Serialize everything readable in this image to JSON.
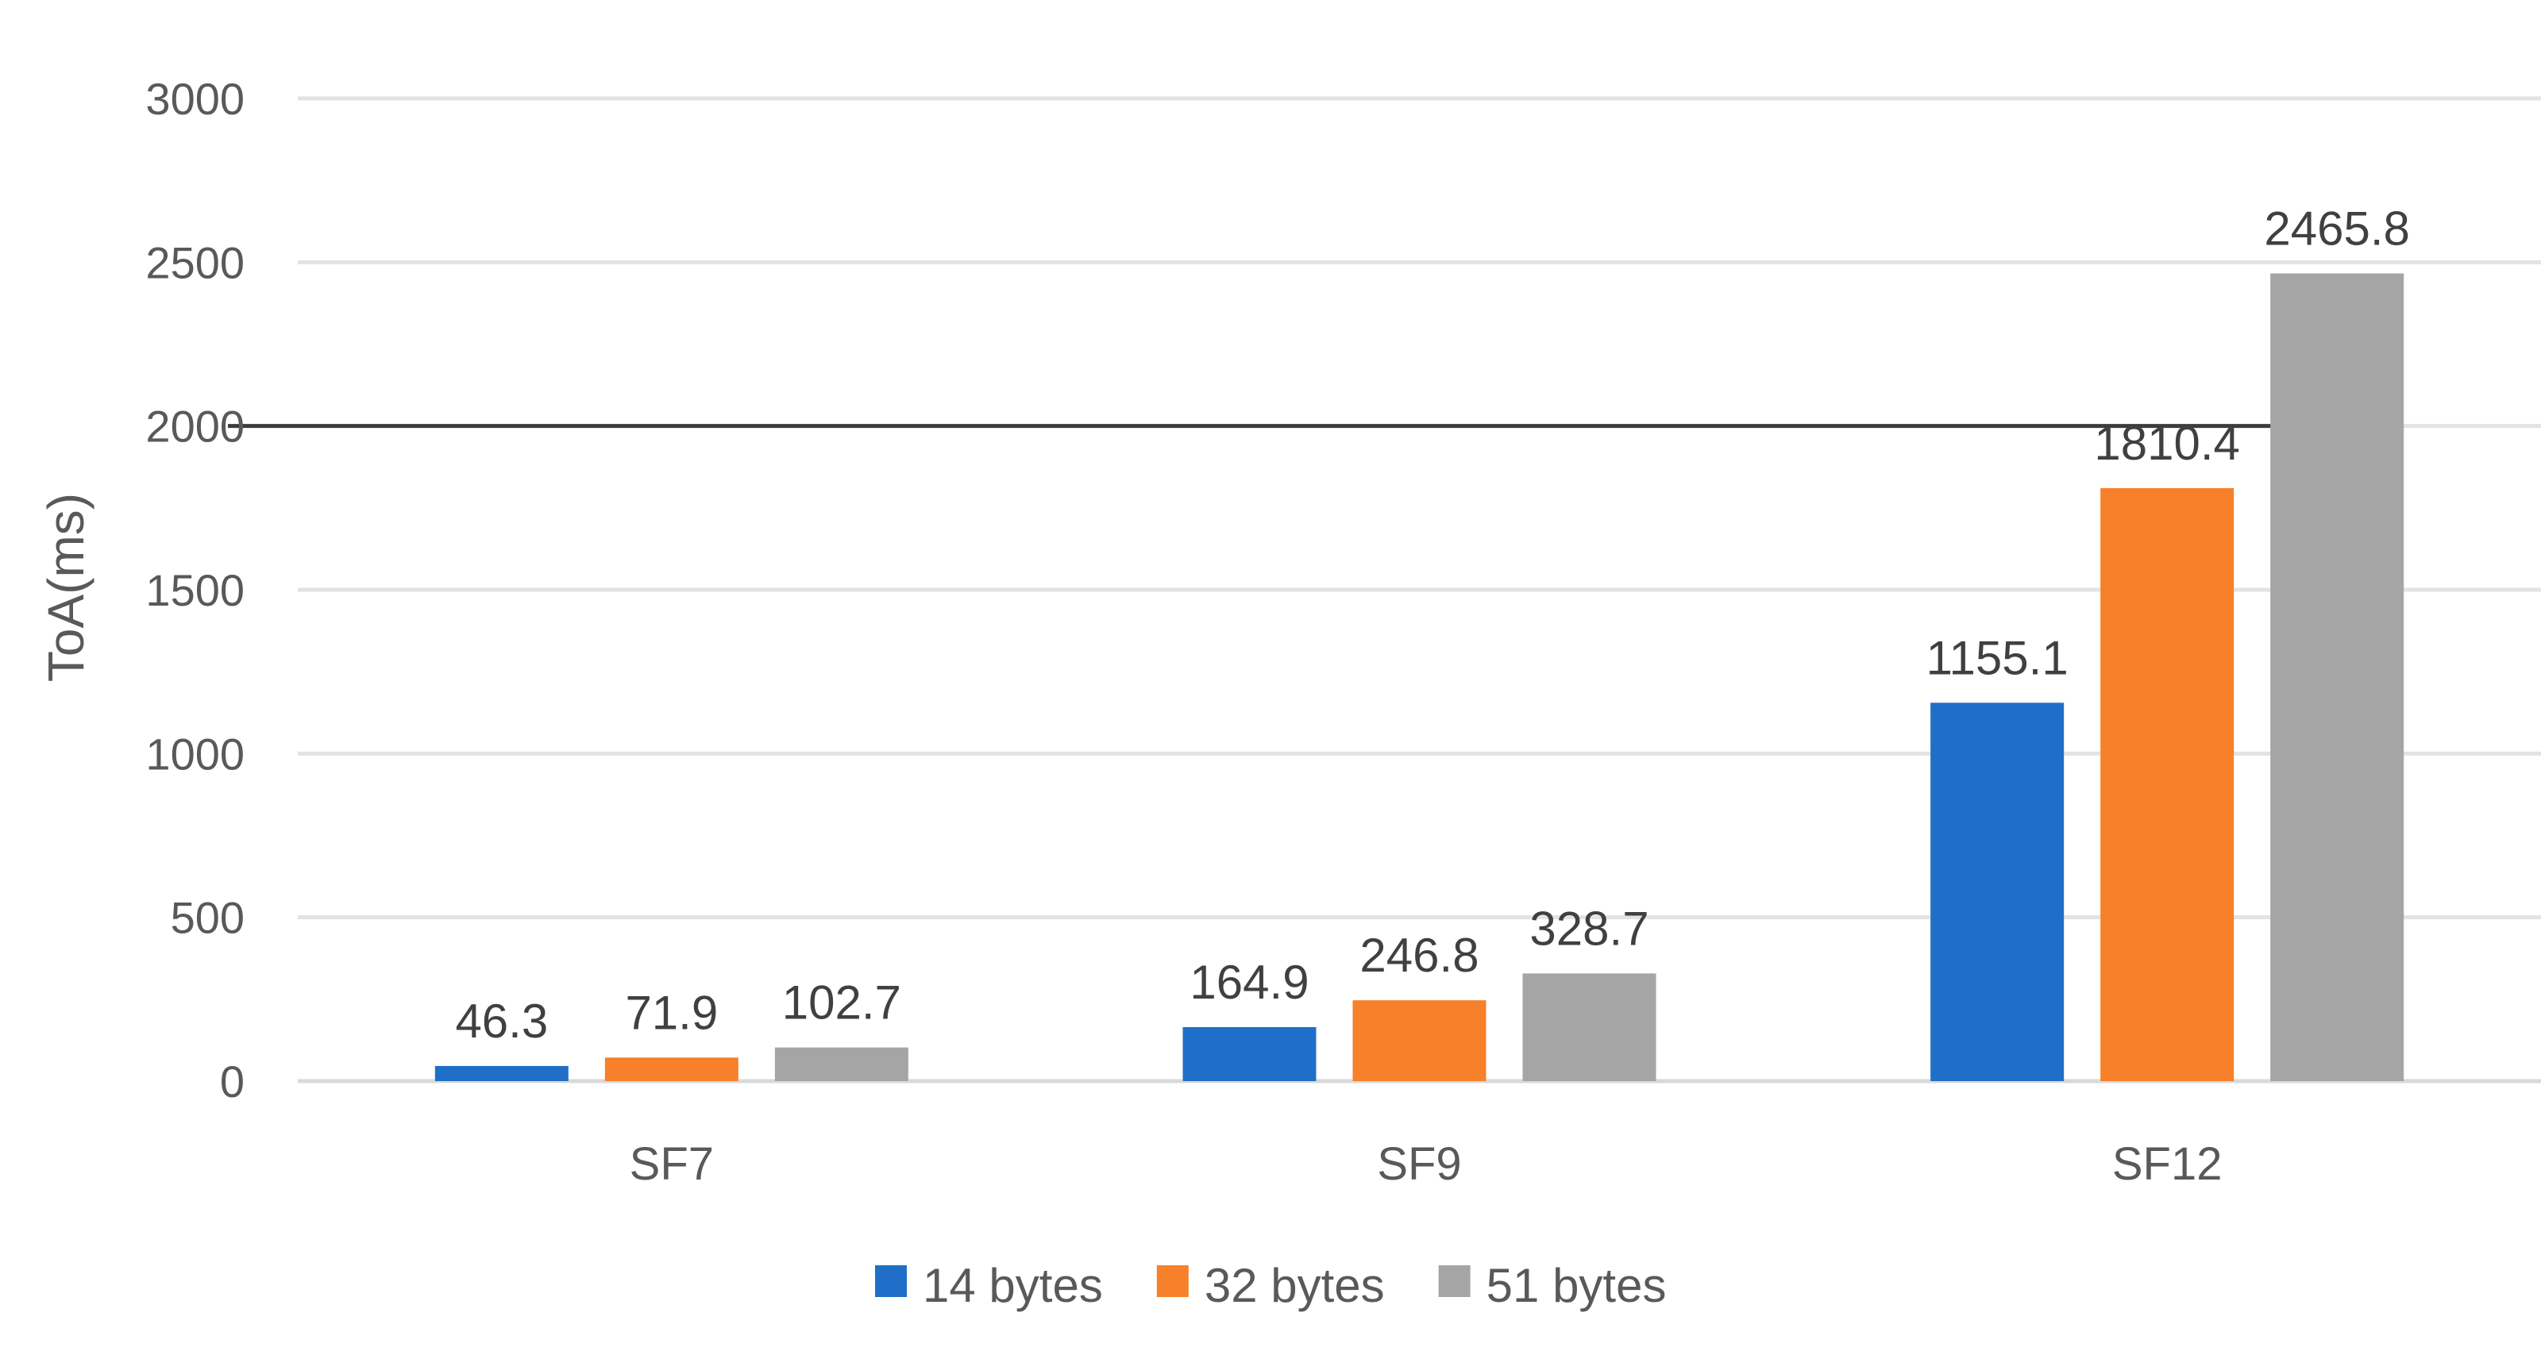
{
  "chart_data": {
    "type": "bar",
    "title": "",
    "xlabel": "",
    "ylabel": "ToA(ms)",
    "categories": [
      "SF7",
      "SF9",
      "SF12"
    ],
    "series": [
      {
        "name": "14 bytes",
        "color": "#1F6FC8",
        "values": [
          46.3,
          164.9,
          1155.1
        ]
      },
      {
        "name": "32 bytes",
        "color": "#F7802A",
        "values": [
          71.9,
          246.8,
          1810.4
        ]
      },
      {
        "name": "51 bytes",
        "color": "#A5A5A5",
        "values": [
          102.7,
          328.7,
          2465.8
        ]
      }
    ],
    "ylim": [
      0,
      3000
    ],
    "yticks": [
      0,
      500,
      1000,
      1500,
      2000,
      2500,
      3000
    ],
    "reference_line": 2000,
    "grid": true,
    "legend_position": "bottom"
  }
}
